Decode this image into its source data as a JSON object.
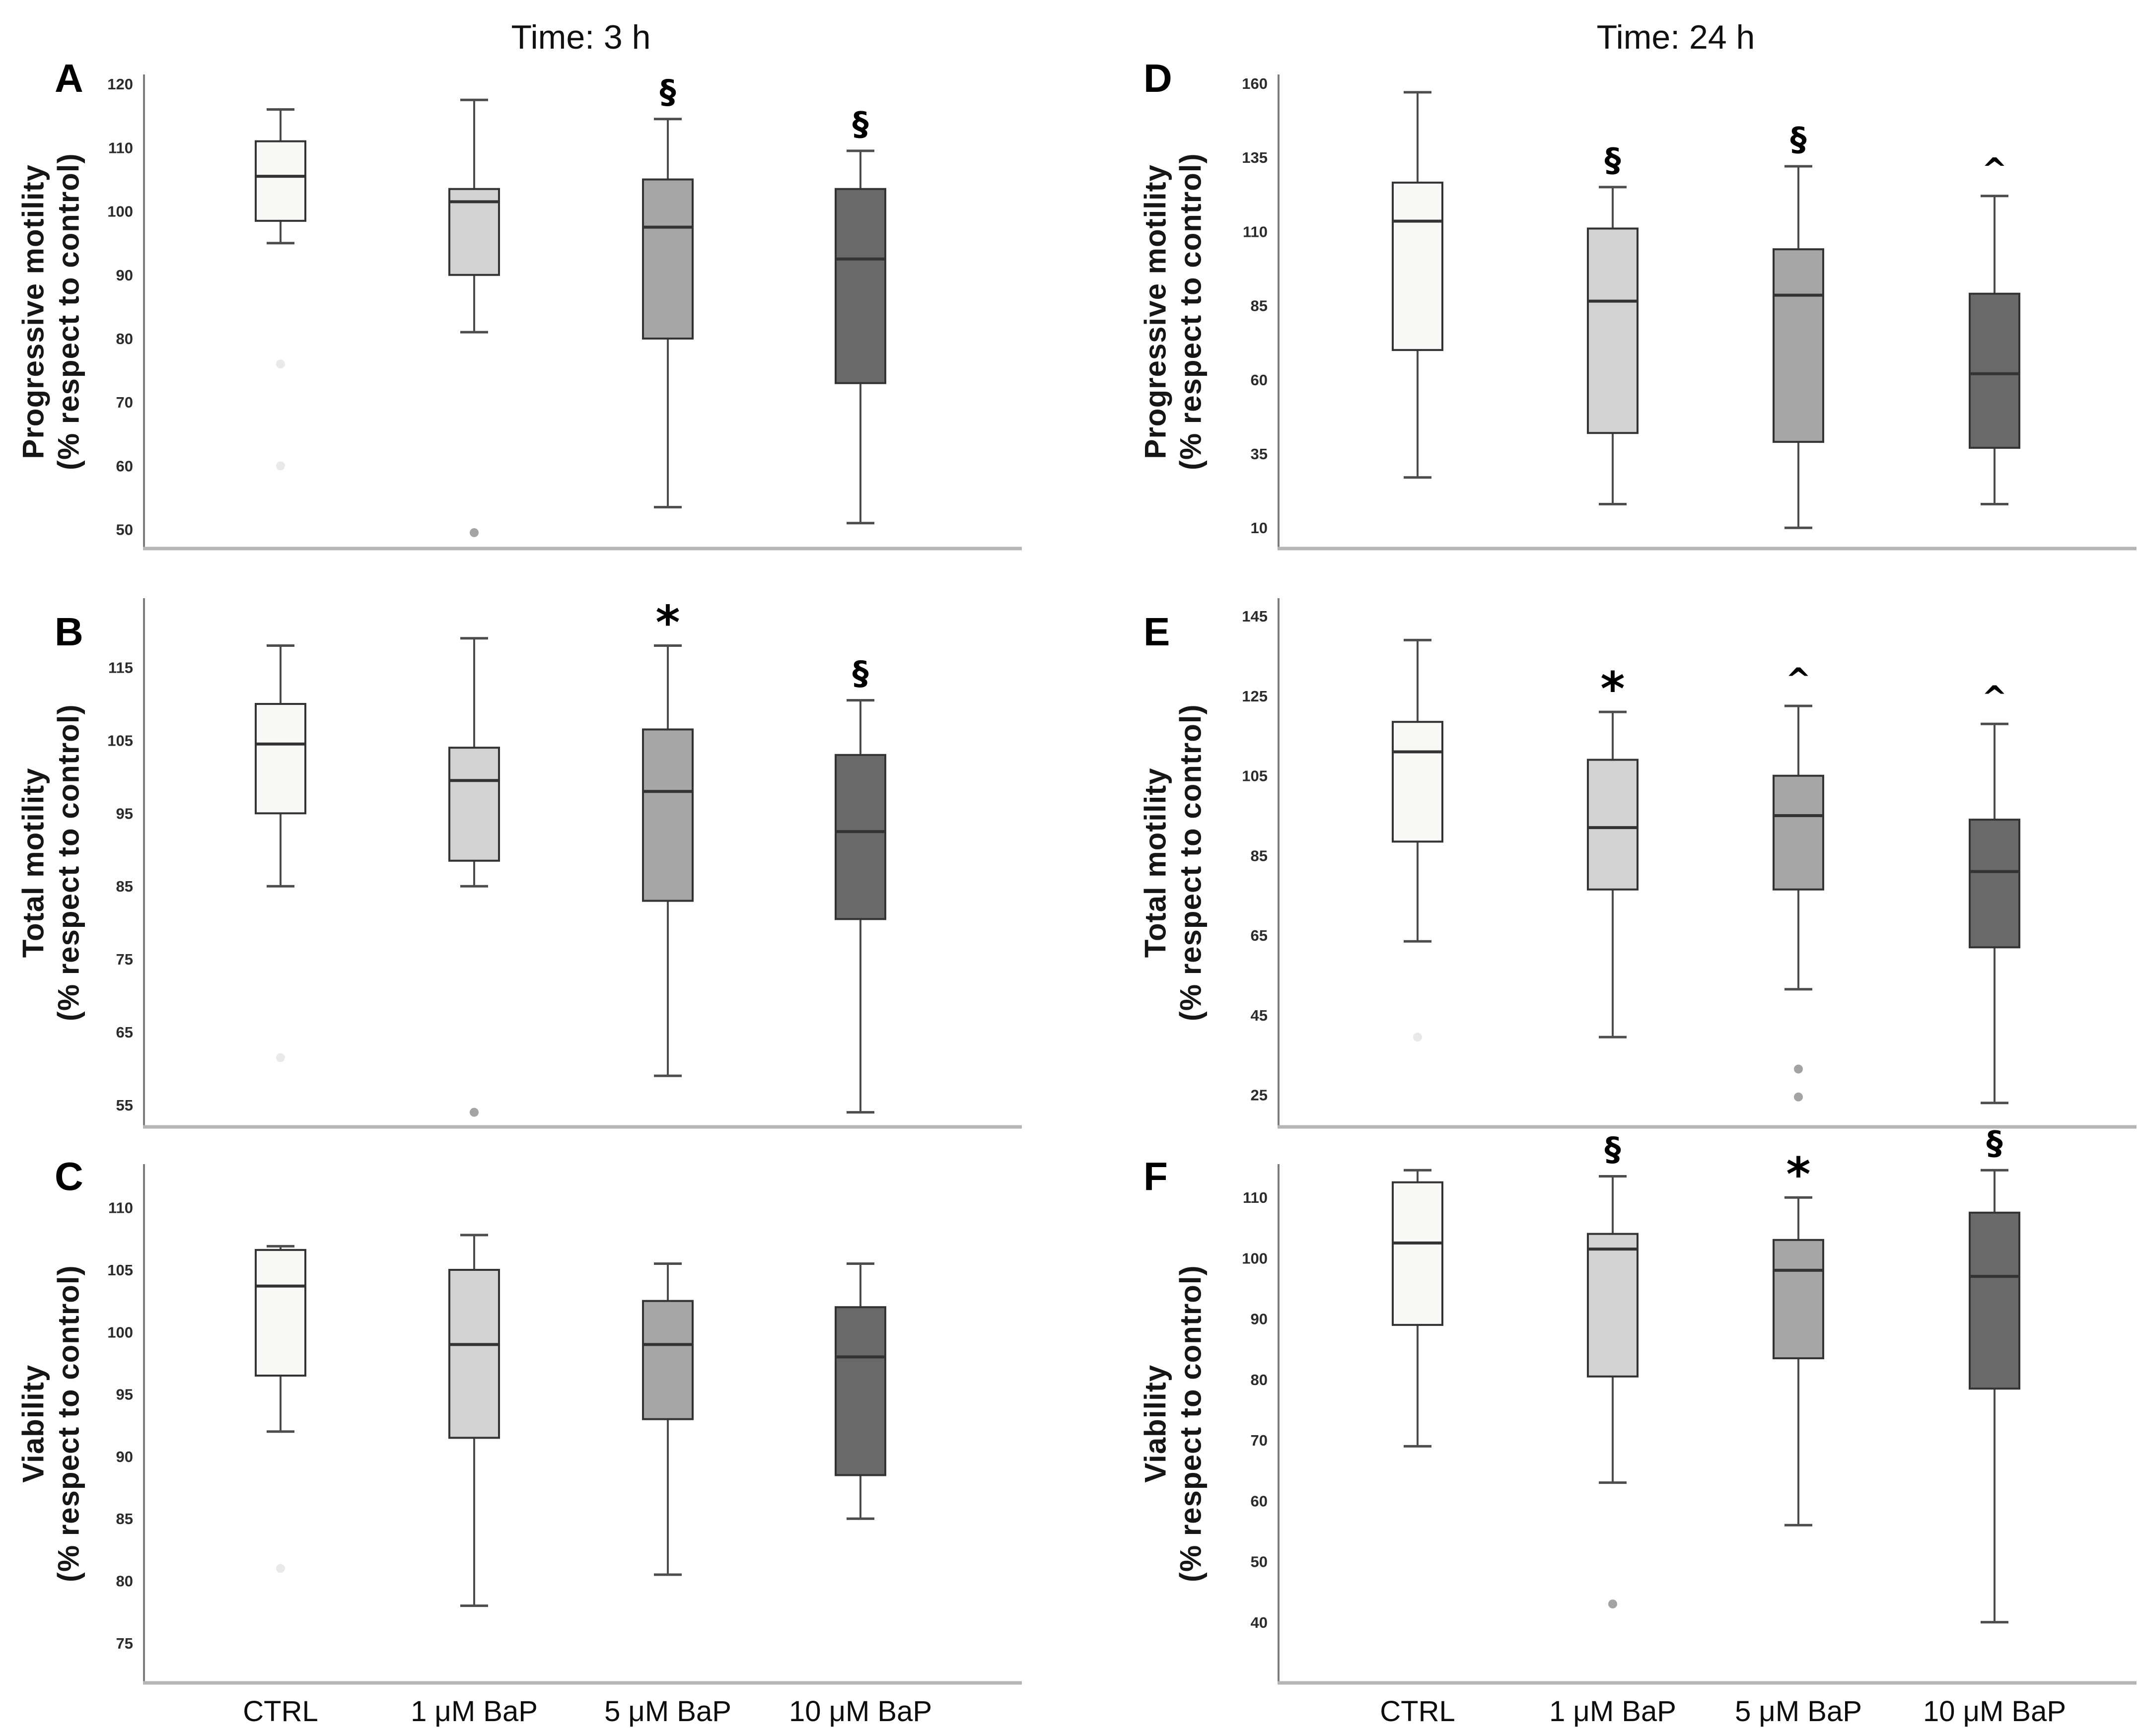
{
  "figure": {
    "background": "#ffffff",
    "column_titles": [
      "Time: 3 h",
      "Time: 24 h"
    ],
    "categories": [
      "CTRL",
      "1 μM BaP",
      "5 μM BaP",
      "10 μM BaP"
    ],
    "box_fill_colors": [
      "#f8f8f6",
      "#d2d2d2",
      "#a6a6a6",
      "#696969"
    ],
    "box_stroke_color": "#333333",
    "whisker_color": "#4d4d4d",
    "axis_color": "#7d7d7d",
    "baseline_color": "#b5b5b5",
    "outlier_color": "#a3a3a3",
    "outlier_color_faint": "#e9e9e9"
  },
  "chart_data": [
    {
      "panel_label": "A",
      "type": "box",
      "time": "3 h",
      "ylabel_line1": "Progressive motility",
      "ylabel_line2": "(% respect to control)",
      "ylim": [
        47,
        121.5
      ],
      "yticks": [
        50,
        60,
        70,
        80,
        90,
        100,
        110,
        120
      ],
      "boxes": [
        {
          "category": "CTRL",
          "whislo": 95,
          "q1": 98.5,
          "med": 105.5,
          "q3": 111,
          "whishi": 116,
          "outliers": [
            {
              "value": 76,
              "faint": true
            },
            {
              "value": 60,
              "faint": true
            }
          ],
          "annotation": ""
        },
        {
          "category": "1 μM BaP",
          "whislo": 81,
          "q1": 90,
          "med": 101.5,
          "q3": 103.5,
          "whishi": 117.5,
          "outliers": [
            {
              "value": 49.5,
              "faint": false
            }
          ],
          "annotation": ""
        },
        {
          "category": "5 μM BaP",
          "whislo": 53.5,
          "q1": 80,
          "med": 97.5,
          "q3": 105,
          "whishi": 114.5,
          "outliers": [],
          "annotation": "§"
        },
        {
          "category": "10 μM BaP",
          "whislo": 51,
          "q1": 73,
          "med": 92.5,
          "q3": 103.5,
          "whishi": 109.5,
          "outliers": [],
          "annotation": "§"
        }
      ]
    },
    {
      "panel_label": "B",
      "type": "box",
      "time": "3 h",
      "ylabel_line1": "Total motility",
      "ylabel_line2": "(% respect to control)",
      "ylim": [
        52,
        124.5
      ],
      "yticks": [
        55,
        65,
        75,
        85,
        95,
        105,
        115
      ],
      "boxes": [
        {
          "category": "CTRL",
          "whislo": 85,
          "q1": 95,
          "med": 104.5,
          "q3": 110,
          "whishi": 118,
          "outliers": [
            {
              "value": 61.5,
              "faint": true
            }
          ],
          "annotation": ""
        },
        {
          "category": "1 μM BaP",
          "whislo": 85,
          "q1": 88.5,
          "med": 99.5,
          "q3": 104,
          "whishi": 119,
          "outliers": [
            {
              "value": 54,
              "faint": false
            }
          ],
          "annotation": ""
        },
        {
          "category": "5 μM BaP",
          "whislo": 59,
          "q1": 83,
          "med": 98,
          "q3": 106.5,
          "whishi": 118,
          "outliers": [],
          "annotation": "*"
        },
        {
          "category": "10 μM BaP",
          "whislo": 54,
          "q1": 80.5,
          "med": 92.5,
          "q3": 103,
          "whishi": 110.5,
          "outliers": [],
          "annotation": "§"
        }
      ]
    },
    {
      "panel_label": "C",
      "type": "box",
      "time": "3 h",
      "ylabel_line1": "Viability",
      "ylabel_line2": "(% respect to control)",
      "ylim": [
        71.8,
        113.5
      ],
      "yticks": [
        75,
        80,
        85,
        90,
        95,
        100,
        105,
        110
      ],
      "boxes": [
        {
          "category": "CTRL",
          "whislo": 92,
          "q1": 96.5,
          "med": 103.7,
          "q3": 106.6,
          "whishi": 106.9,
          "outliers": [
            {
              "value": 81,
              "faint": true
            }
          ],
          "annotation": ""
        },
        {
          "category": "1 μM BaP",
          "whislo": 78,
          "q1": 91.5,
          "med": 99,
          "q3": 105,
          "whishi": 107.8,
          "outliers": [],
          "annotation": ""
        },
        {
          "category": "5 μM BaP",
          "whislo": 80.5,
          "q1": 93,
          "med": 99,
          "q3": 102.5,
          "whishi": 105.5,
          "outliers": [],
          "annotation": ""
        },
        {
          "category": "10 μM BaP",
          "whislo": 85,
          "q1": 88.5,
          "med": 98,
          "q3": 102,
          "whishi": 105.5,
          "outliers": [],
          "annotation": ""
        }
      ]
    },
    {
      "panel_label": "D",
      "type": "box",
      "time": "24 h",
      "ylabel_line1": "Progressive motility",
      "ylabel_line2": "(% respect to control)",
      "ylim": [
        3,
        163
      ],
      "yticks": [
        10,
        35,
        60,
        85,
        110,
        135,
        160
      ],
      "boxes": [
        {
          "category": "CTRL",
          "whislo": 27,
          "q1": 70,
          "med": 113.5,
          "q3": 126.5,
          "whishi": 157,
          "outliers": [],
          "annotation": ""
        },
        {
          "category": "1 μM BaP",
          "whislo": 18,
          "q1": 42,
          "med": 86.5,
          "q3": 111,
          "whishi": 125,
          "outliers": [],
          "annotation": "§"
        },
        {
          "category": "5 μM BaP",
          "whislo": 10,
          "q1": 39,
          "med": 88.5,
          "q3": 104,
          "whishi": 132,
          "outliers": [],
          "annotation": "§"
        },
        {
          "category": "10 μM BaP",
          "whislo": 18,
          "q1": 37,
          "med": 62,
          "q3": 89,
          "whishi": 122,
          "outliers": [],
          "annotation": "^"
        }
      ]
    },
    {
      "panel_label": "E",
      "type": "box",
      "time": "24 h",
      "ylabel_line1": "Total motility",
      "ylabel_line2": "(% respect to control)",
      "ylim": [
        17,
        149.5
      ],
      "yticks": [
        25,
        45,
        65,
        85,
        105,
        125,
        145
      ],
      "boxes": [
        {
          "category": "CTRL",
          "whislo": 63.5,
          "q1": 88.5,
          "med": 111,
          "q3": 118.5,
          "whishi": 139,
          "outliers": [
            {
              "value": 39.5,
              "faint": true
            }
          ],
          "annotation": ""
        },
        {
          "category": "1 μM BaP",
          "whislo": 39.5,
          "q1": 76.5,
          "med": 92,
          "q3": 109,
          "whishi": 121,
          "outliers": [],
          "annotation": "*"
        },
        {
          "category": "5 μM BaP",
          "whislo": 51.5,
          "q1": 76.5,
          "med": 95,
          "q3": 105,
          "whishi": 122.5,
          "outliers": [
            {
              "value": 31.5,
              "faint": false
            },
            {
              "value": 24.5,
              "faint": false
            }
          ],
          "annotation": "^"
        },
        {
          "category": "10 μM BaP",
          "whislo": 23,
          "q1": 62,
          "med": 81,
          "q3": 94,
          "whishi": 118,
          "outliers": [],
          "annotation": "^"
        }
      ]
    },
    {
      "panel_label": "F",
      "type": "box",
      "time": "24 h",
      "ylabel_line1": "Viability",
      "ylabel_line2": "(% respect to control)",
      "ylim": [
        30,
        115.5
      ],
      "yticks": [
        40,
        50,
        60,
        70,
        80,
        90,
        100,
        110
      ],
      "boxes": [
        {
          "category": "CTRL",
          "whislo": 69,
          "q1": 89,
          "med": 102.5,
          "q3": 112.5,
          "whishi": 114.5,
          "outliers": [],
          "annotation": ""
        },
        {
          "category": "1 μM BaP",
          "whislo": 63,
          "q1": 80.5,
          "med": 101.5,
          "q3": 104,
          "whishi": 113.5,
          "outliers": [
            {
              "value": 43,
              "faint": false
            }
          ],
          "annotation": "§"
        },
        {
          "category": "5 μM BaP",
          "whislo": 56,
          "q1": 83.5,
          "med": 98,
          "q3": 103,
          "whishi": 110,
          "outliers": [],
          "annotation": "*"
        },
        {
          "category": "10 μM BaP",
          "whislo": 40,
          "q1": 78.5,
          "med": 97,
          "q3": 107.5,
          "whishi": 114.5,
          "outliers": [],
          "annotation": "§"
        }
      ]
    }
  ]
}
